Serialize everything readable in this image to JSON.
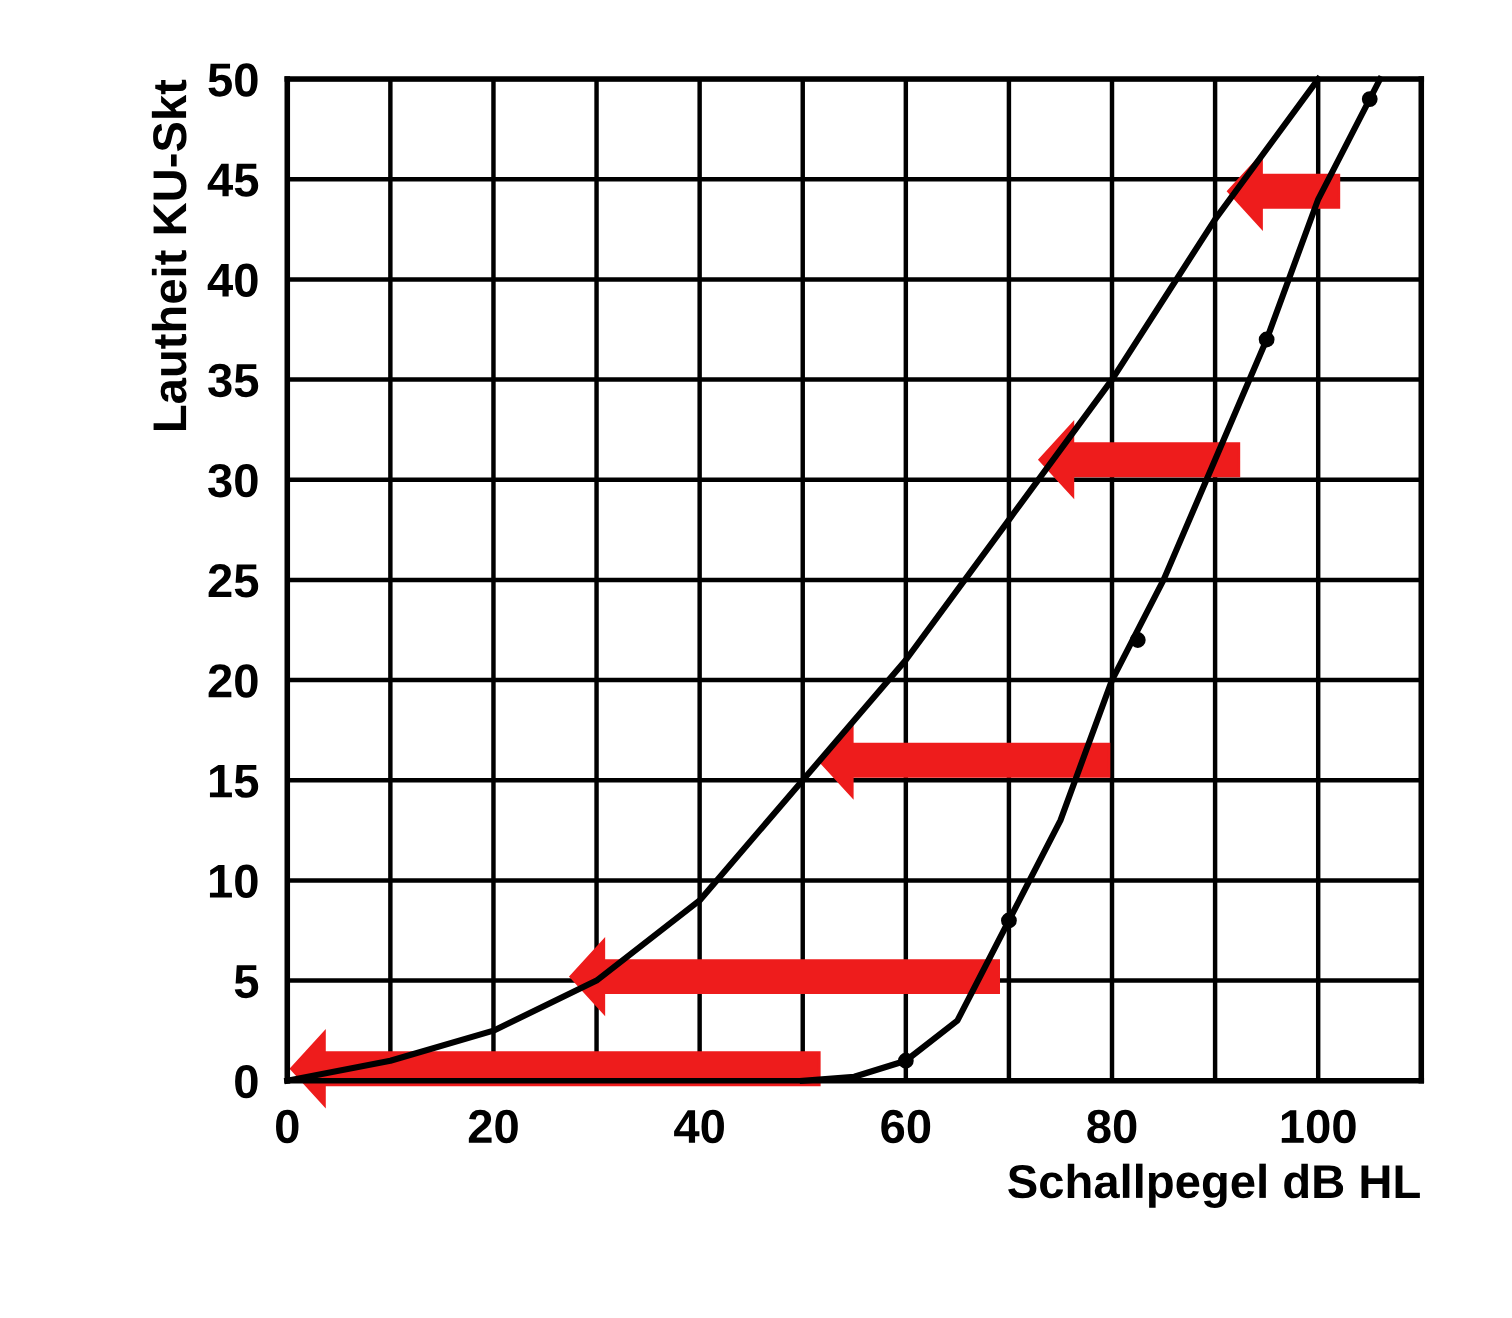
{
  "chart_data": {
    "type": "line",
    "xlabel": "Schallpegel dB HL",
    "ylabel": "Lautheit KU-Skt",
    "xlim": [
      0,
      110
    ],
    "ylim": [
      0,
      50
    ],
    "xticks": [
      0,
      {
        "value": 10,
        "label": null
      },
      20,
      {
        "value": 30,
        "label": null
      },
      40,
      {
        "value": 50,
        "label": null
      },
      60,
      {
        "value": 70,
        "label": null
      },
      80,
      {
        "value": 90,
        "label": null
      },
      100
    ],
    "yticks": [
      0,
      5,
      10,
      15,
      20,
      25,
      30,
      35,
      40,
      45,
      50
    ],
    "grid": true,
    "legend": false,
    "series": [
      {
        "color": "#000000",
        "marker": "none",
        "x": [
          0,
          10,
          20,
          30,
          40,
          50,
          60,
          70,
          80,
          90,
          100
        ],
        "values": [
          0,
          1,
          2.5,
          5,
          9,
          15,
          21,
          28,
          35,
          43,
          50
        ]
      },
      {
        "color": "#000000",
        "marker": "none",
        "x": [
          50,
          55,
          60,
          65,
          70,
          75,
          80,
          85,
          90,
          95,
          100,
          106
        ],
        "values": [
          0,
          0.2,
          1,
          3,
          8,
          13,
          20,
          25,
          31,
          37,
          44,
          50
        ]
      },
      {
        "type": "scatter",
        "color": "#000000",
        "marker": "circle",
        "x": [
          60,
          70,
          82.5,
          95,
          105
        ],
        "values": [
          1,
          8,
          22,
          37,
          49
        ]
      }
    ]
  }
}
